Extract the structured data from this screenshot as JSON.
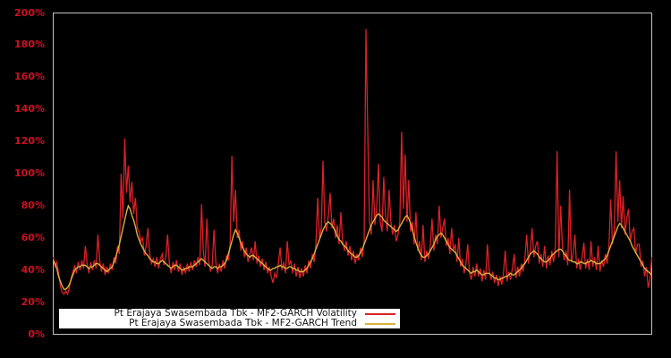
{
  "figure": {
    "background_color": "#000000",
    "plot_border_color": "#c3c3c3",
    "title": ""
  },
  "y_axis": {
    "label_color": "#cd1120",
    "tick_labels": [
      "0%",
      "20%",
      "40%",
      "60%",
      "80%",
      "100%",
      "120%",
      "140%",
      "160%",
      "180%",
      "200%"
    ]
  },
  "x_axis": {
    "tick_labels": []
  },
  "legend": {
    "background": "#ffffff",
    "entries": [
      {
        "label": "Pt Erajaya Swasembada Tbk - MF2-GARCH Volatility",
        "color": "#dc2127"
      },
      {
        "label": "Pt Erajaya Swasembada Tbk - MF2-GARCH Trend",
        "color": "#d9b13c"
      }
    ]
  },
  "chart_data": {
    "type": "line",
    "title": "",
    "xlabel": "",
    "ylabel": "",
    "ylim": [
      0,
      200
    ],
    "y_tick_step_percent": 20,
    "grid": false,
    "legend_position": "bottom-left inside, white box",
    "x_axis_labels_shown": false,
    "units": "percent",
    "series": [
      {
        "name": "Pt Erajaya Swasembada Tbk - MF2-GARCH Volatility",
        "color": "#dc2127",
        "values": [
          48,
          42,
          45,
          38,
          30,
          26,
          25,
          27,
          25,
          29,
          35,
          39,
          43,
          38,
          45,
          40,
          46,
          41,
          55,
          44,
          38,
          45,
          40,
          46,
          41,
          62,
          46,
          39,
          44,
          37,
          42,
          38,
          44,
          40,
          48,
          44,
          55,
          50,
          100,
          72,
          122,
          88,
          105,
          82,
          95,
          75,
          85,
          66,
          64,
          58,
          60,
          49,
          55,
          66,
          50,
          44,
          47,
          42,
          48,
          41,
          47,
          50,
          43,
          48,
          62,
          44,
          38,
          45,
          40,
          46,
          39,
          44,
          37,
          42,
          38,
          44,
          39,
          45,
          40,
          46,
          42,
          48,
          43,
          81,
          52,
          42,
          72,
          46,
          39,
          43,
          65,
          45,
          38,
          44,
          39,
          46,
          41,
          49,
          46,
          56,
          111,
          70,
          90,
          60,
          65,
          52,
          58,
          48,
          54,
          45,
          50,
          54,
          46,
          58,
          44,
          49,
          42,
          47,
          40,
          45,
          38,
          42,
          36,
          32,
          38,
          35,
          44,
          54,
          40,
          45,
          38,
          58,
          43,
          46,
          38,
          44,
          36,
          42,
          35,
          41,
          36,
          43,
          38,
          46,
          41,
          50,
          45,
          56,
          85,
          60,
          66,
          108,
          70,
          64,
          74,
          88,
          66,
          72,
          60,
          68,
          56,
          76,
          58,
          52,
          58,
          49,
          55,
          46,
          52,
          44,
          50,
          46,
          54,
          48,
          58,
          190,
          128,
          70,
          62,
          96,
          68,
          78,
          106,
          70,
          64,
          98,
          74,
          64,
          90,
          70,
          62,
          68,
          58,
          62,
          70,
          126,
          78,
          112,
          70,
          96,
          64,
          70,
          56,
          76,
          52,
          58,
          46,
          68,
          45,
          52,
          47,
          55,
          72,
          52,
          62,
          56,
          80,
          60,
          66,
          72,
          55,
          60,
          50,
          66,
          52,
          56,
          45,
          60,
          42,
          47,
          38,
          44,
          56,
          38,
          34,
          42,
          36,
          44,
          36,
          41,
          33,
          40,
          34,
          56,
          40,
          34,
          39,
          32,
          37,
          30,
          36,
          31,
          38,
          52,
          33,
          39,
          34,
          41,
          50,
          35,
          42,
          36,
          44,
          39,
          47,
          62,
          44,
          52,
          66,
          48,
          55,
          58,
          44,
          50,
          42,
          55,
          41,
          49,
          43,
          52,
          45,
          54,
          114,
          48,
          80,
          55,
          46,
          52,
          43,
          90,
          45,
          50,
          62,
          41,
          47,
          40,
          48,
          57,
          41,
          47,
          40,
          58,
          42,
          48,
          40,
          55,
          39,
          46,
          42,
          50,
          44,
          54,
          84,
          56,
          64,
          114,
          70,
          96,
          66,
          86,
          62,
          72,
          78,
          58,
          64,
          66,
          50,
          56,
          56,
          42,
          46,
          36,
          42,
          29,
          34,
          48
        ]
      },
      {
        "name": "Pt Erajaya Swasembada Tbk - MF2-GARCH Trend",
        "color": "#d9b13c",
        "values": [
          46,
          44,
          41,
          36,
          33,
          30,
          28,
          28,
          29,
          31,
          34,
          37,
          40,
          41,
          42,
          42,
          43,
          43,
          43,
          42,
          41,
          42,
          42,
          43,
          44,
          44,
          43,
          42,
          41,
          40,
          39,
          40,
          41,
          42,
          45,
          48,
          52,
          56,
          61,
          66,
          71,
          76,
          80,
          78,
          74,
          71,
          67,
          62,
          59,
          56,
          54,
          52,
          50,
          49,
          47,
          46,
          45,
          45,
          44,
          44,
          45,
          46,
          45,
          44,
          43,
          42,
          41,
          42,
          43,
          43,
          42,
          41,
          40,
          40,
          41,
          41,
          42,
          42,
          42,
          43,
          44,
          45,
          46,
          47,
          46,
          45,
          44,
          43,
          42,
          41,
          42,
          42,
          41,
          42,
          42,
          43,
          44,
          46,
          50,
          54,
          58,
          62,
          65,
          63,
          60,
          57,
          54,
          52,
          50,
          49,
          48,
          49,
          49,
          48,
          47,
          46,
          45,
          44,
          43,
          42,
          41,
          40,
          40,
          41,
          41,
          42,
          42,
          43,
          42,
          42,
          41,
          41,
          42,
          42,
          41,
          41,
          40,
          40,
          39,
          39,
          39,
          40,
          41,
          43,
          45,
          47,
          50,
          53,
          56,
          59,
          62,
          65,
          67,
          69,
          70,
          69,
          68,
          66,
          64,
          61,
          59,
          58,
          56,
          55,
          54,
          52,
          51,
          50,
          49,
          48,
          48,
          49,
          51,
          53,
          56,
          59,
          62,
          65,
          68,
          70,
          72,
          74,
          75,
          74,
          73,
          71,
          70,
          69,
          68,
          67,
          66,
          65,
          64,
          65,
          67,
          69,
          71,
          73,
          74,
          72,
          69,
          65,
          61,
          57,
          54,
          51,
          49,
          48,
          48,
          49,
          50,
          52,
          54,
          56,
          59,
          61,
          62,
          63,
          62,
          60,
          58,
          56,
          54,
          53,
          52,
          51,
          49,
          47,
          45,
          43,
          42,
          41,
          40,
          39,
          38,
          39,
          39,
          40,
          39,
          38,
          37,
          37,
          38,
          38,
          38,
          37,
          36,
          35,
          35,
          34,
          34,
          35,
          35,
          36,
          36,
          37,
          38,
          37,
          37,
          38,
          39,
          40,
          41,
          43,
          44,
          46,
          48,
          50,
          51,
          52,
          51,
          50,
          48,
          47,
          46,
          45,
          45,
          46,
          47,
          49,
          50,
          51,
          52,
          53,
          53,
          52,
          50,
          49,
          47,
          46,
          46,
          45,
          45,
          44,
          44,
          45,
          45,
          44,
          44,
          45,
          45,
          46,
          45,
          45,
          44,
          44,
          44,
          45,
          46,
          47,
          49,
          52,
          55,
          58,
          61,
          64,
          67,
          69,
          68,
          66,
          64,
          62,
          60,
          58,
          55,
          53,
          51,
          49,
          47,
          45,
          43,
          41,
          40,
          39,
          38,
          37
        ]
      }
    ]
  }
}
